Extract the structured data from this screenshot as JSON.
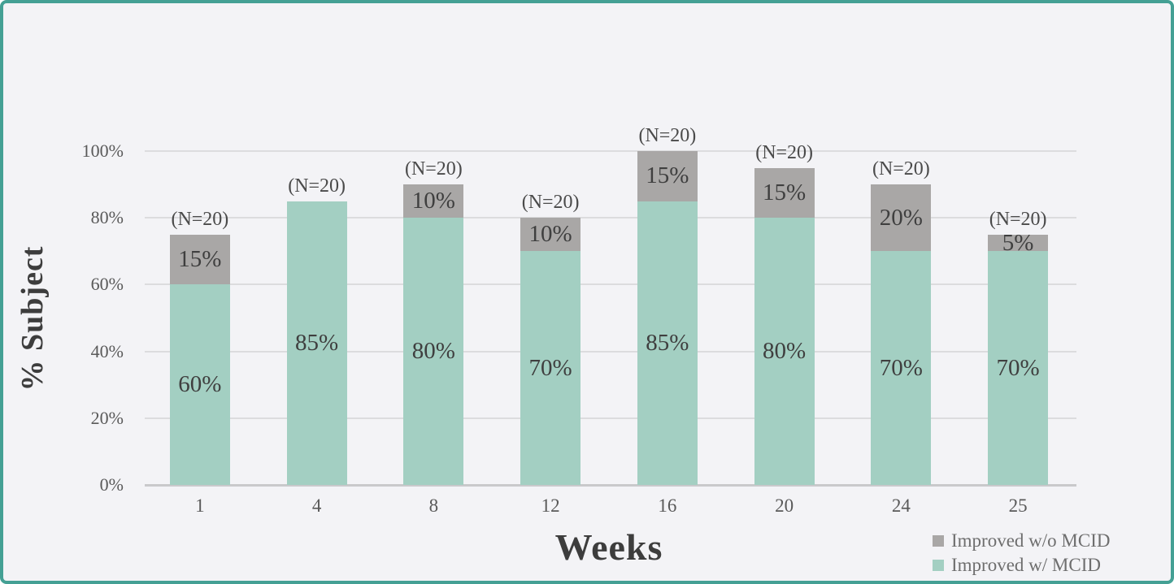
{
  "frame": {
    "background": "#f3f3f6",
    "border_color": "#44a094"
  },
  "chart_data": {
    "type": "bar",
    "stacked": true,
    "title": "",
    "xlabel": "Weeks",
    "ylabel": "% Subject",
    "categories": [
      "1",
      "4",
      "8",
      "12",
      "16",
      "20",
      "24",
      "25"
    ],
    "series": [
      {
        "name": "Improved w/ MCID",
        "color": "#a3cfc2",
        "values": [
          60,
          85,
          80,
          70,
          85,
          80,
          70,
          70
        ]
      },
      {
        "name": "Improved w/o MCID",
        "color": "#a9a7a6",
        "values": [
          15,
          0,
          10,
          10,
          15,
          15,
          20,
          5
        ]
      }
    ],
    "segment_label_suffix": "%",
    "bar_annotations": [
      "(N=20)",
      "(N=20)",
      "(N=20)",
      "(N=20)",
      "(N=20)",
      "(N=20)",
      "(N=20)",
      "(N=20)"
    ],
    "y_ticks": [
      {
        "label": "100%",
        "value": 100
      },
      {
        "label": "80%",
        "value": 80
      },
      {
        "label": "60%",
        "value": 60
      },
      {
        "label": "40%",
        "value": 40
      },
      {
        "label": "20%",
        "value": 20
      },
      {
        "label": "0%",
        "value": 0
      }
    ],
    "ylim": [
      0,
      100
    ],
    "grid": true,
    "legend_position": "bottom-right",
    "legend": [
      {
        "label": "Improved w/o MCID",
        "color": "#a9a7a6"
      },
      {
        "label": "Improved w/ MCID",
        "color": "#a3cfc2"
      }
    ]
  }
}
